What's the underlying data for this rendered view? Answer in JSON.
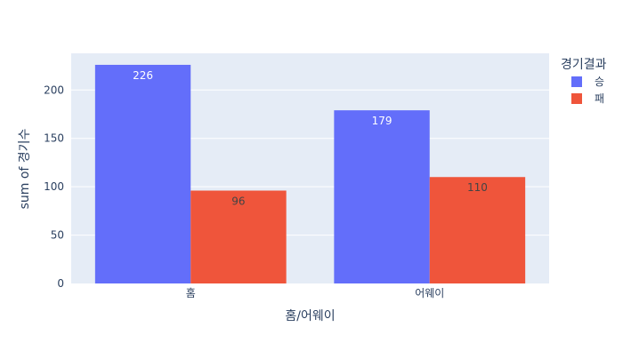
{
  "chart_data": {
    "type": "bar",
    "title": "",
    "xlabel": "홈/어웨이",
    "ylabel": "sum of 경기수",
    "categories": [
      "홈",
      "어웨이"
    ],
    "series": [
      {
        "name": "승",
        "values": [
          226,
          179
        ],
        "color": "#636efa"
      },
      {
        "name": "패",
        "values": [
          96,
          110
        ],
        "color": "#ef553b"
      }
    ],
    "ylim": [
      0,
      237.9
    ],
    "yticks": [
      0,
      50,
      100,
      150,
      200
    ],
    "legend": {
      "title": "경기결과",
      "placement": "right"
    },
    "grid": true,
    "plot_bg": "#e5ecf6"
  }
}
